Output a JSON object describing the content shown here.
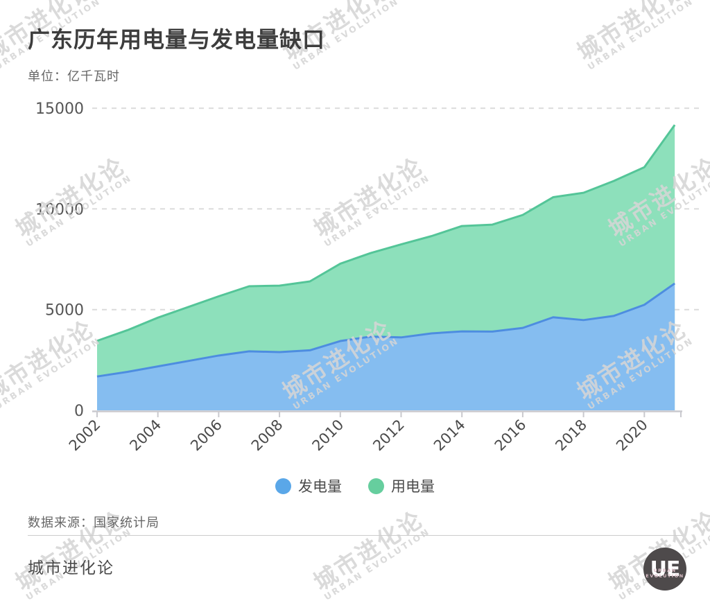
{
  "title": "广东历年用电量与发电量缺口",
  "unit_label": "单位：亿千瓦时",
  "source": "数据来源：国家统计局",
  "footer_brand": "城市进化论",
  "watermark": {
    "line1": "城市进化论",
    "line2": "URBAN EVOLUTION"
  },
  "logo": {
    "monogram": "UE",
    "line1": "URBAN",
    "line2": "EVOLUTION"
  },
  "legend": [
    {
      "label": "发电量",
      "color": "#5aa7e8"
    },
    {
      "label": "用电量",
      "color": "#66ce9e"
    }
  ],
  "colors": {
    "grid": "#dbdbdb",
    "axis": "#c9c9ce",
    "y_tick_label": "#555555",
    "x_tick_label": "#4a4a4a",
    "watermark": "#d5d5d5",
    "divider": "#cccccc",
    "logo_bg": "#4e4a4b",
    "background": "#ffffff"
  },
  "chart_data": {
    "type": "area",
    "stacked": true,
    "title": "广东历年用电量与发电量缺口",
    "unit": "亿千瓦时",
    "x": [
      2002,
      2003,
      2004,
      2005,
      2006,
      2007,
      2008,
      2009,
      2010,
      2011,
      2012,
      2013,
      2014,
      2015,
      2016,
      2017,
      2018,
      2019,
      2020,
      2021
    ],
    "series": [
      {
        "name": "发电量",
        "fill": "#85bdf0",
        "stroke": "#4d8de0",
        "values": [
          1680,
          1910,
          2180,
          2450,
          2720,
          2930,
          2890,
          2980,
          3440,
          3660,
          3620,
          3820,
          3920,
          3910,
          4090,
          4620,
          4480,
          4690,
          5240,
          6300
        ]
      },
      {
        "name": "用电量",
        "fill": "#8de0bb",
        "stroke": "#54c598",
        "values": [
          1770,
          2070,
          2420,
          2680,
          2940,
          3230,
          3300,
          3420,
          3840,
          4150,
          4620,
          4830,
          5230,
          5310,
          5610,
          5960,
          6320,
          6700,
          6830,
          7870
        ]
      }
    ],
    "ylim": [
      0,
      15000
    ],
    "yticks": [
      0,
      5000,
      10000,
      15000
    ],
    "xticks": [
      2002,
      2004,
      2006,
      2008,
      2010,
      2012,
      2014,
      2016,
      2018,
      2020
    ],
    "grid": "horizontal-dashed",
    "legend_position": "bottom",
    "note": "stacked area: 用电量 band sits on top of 发电量; visible green band height = gap(缺口)"
  }
}
